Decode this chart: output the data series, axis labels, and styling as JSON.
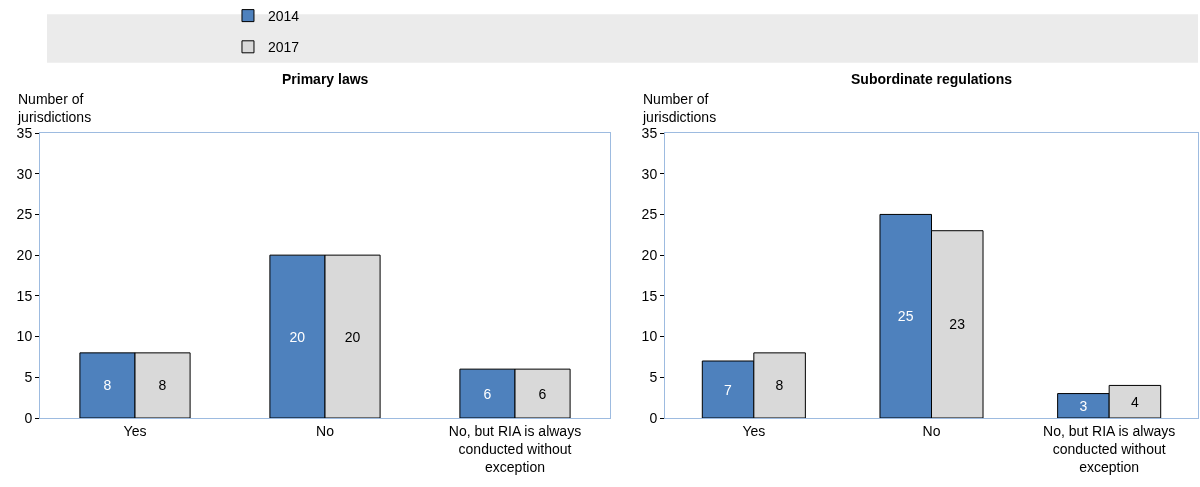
{
  "chart_data": [
    {
      "type": "bar",
      "title": "Primary laws",
      "ylabel": "Number of\njurisdictions",
      "categories": [
        "Yes",
        "No",
        "No, but RIA is always conducted without exception"
      ],
      "series": [
        {
          "name": "2014",
          "color": "#4e81bd",
          "values": [
            8,
            20,
            6
          ]
        },
        {
          "name": "2017",
          "color": "#d9d9d9",
          "values": [
            8,
            20,
            6
          ]
        }
      ],
      "ylim": [
        0,
        35
      ],
      "yticks": [
        0,
        5,
        10,
        15,
        20,
        25,
        30,
        35
      ],
      "legend": "top",
      "data_labels": true
    },
    {
      "type": "bar",
      "title": "Subordinate regulations",
      "ylabel": "Number of\njurisdictions",
      "categories": [
        "Yes",
        "No",
        "No, but RIA is always conducted without exception"
      ],
      "series": [
        {
          "name": "2014",
          "color": "#4e81bd",
          "values": [
            7,
            25,
            3
          ]
        },
        {
          "name": "2017",
          "color": "#d9d9d9",
          "values": [
            8,
            23,
            4
          ]
        }
      ],
      "ylim": [
        0,
        35
      ],
      "yticks": [
        0,
        5,
        10,
        15,
        20,
        25,
        30,
        35
      ],
      "legend": "top",
      "data_labels": true
    }
  ]
}
